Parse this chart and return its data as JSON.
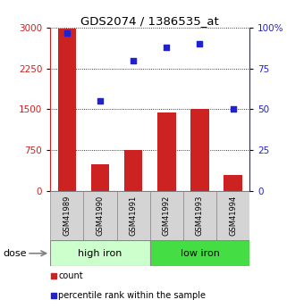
{
  "title": "GDS2074 / 1386535_at",
  "categories": [
    "GSM41989",
    "GSM41990",
    "GSM41991",
    "GSM41992",
    "GSM41993",
    "GSM41994"
  ],
  "bar_values": [
    2980,
    490,
    750,
    1450,
    1500,
    295
  ],
  "scatter_values": [
    97,
    55,
    80,
    88,
    90,
    50
  ],
  "bar_color": "#cc2222",
  "scatter_color": "#2222cc",
  "group1_label": "high iron",
  "group2_label": "low iron",
  "group1_color": "#ccffcc",
  "group2_color": "#44dd44",
  "group1_indices": [
    0,
    1,
    2
  ],
  "group2_indices": [
    3,
    4,
    5
  ],
  "ylim_left": [
    0,
    3000
  ],
  "ylim_right": [
    0,
    100
  ],
  "yticks_left": [
    0,
    750,
    1500,
    2250,
    3000
  ],
  "yticks_right": [
    0,
    25,
    50,
    75,
    100
  ],
  "ytick_labels_right": [
    "0",
    "25",
    "50",
    "75",
    "100%"
  ],
  "bg_color": "#ffffff",
  "label_count": "count",
  "label_percentile": "percentile rank within the sample",
  "dose_label": "dose",
  "bar_width": 0.55,
  "cell_color": "#d4d4d4"
}
